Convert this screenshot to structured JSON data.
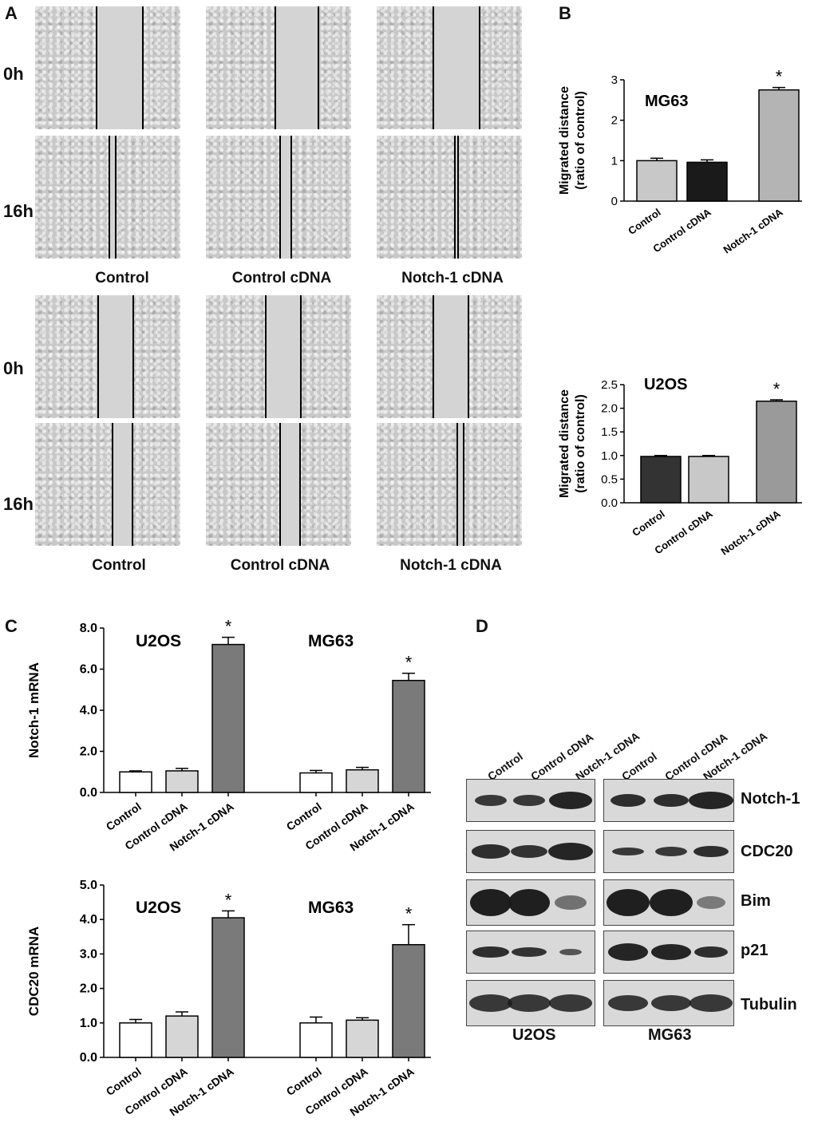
{
  "panel_letters": {
    "a": "A",
    "b": "B",
    "c": "C",
    "d": "D"
  },
  "panel_a": {
    "row_labels": [
      "0h",
      "16h",
      "0h",
      "16h"
    ],
    "top_conditions": [
      "Control",
      "Control cDNA",
      "Notch-1 cDNA"
    ],
    "bottom_conditions": [
      "Control",
      "Control cDNA",
      "Notch-1 cDNA"
    ]
  },
  "chart_data": [
    {
      "id": "b_mg63",
      "type": "bar",
      "title": "MG63",
      "ylabel": "Migrated distance (ratio of control)",
      "ylabel_line1": "Migrated distance",
      "ylabel_line2": "(ratio of control)",
      "categories": [
        "Control",
        "Control cDNA",
        "Notch-1 cDNA"
      ],
      "values": [
        1.0,
        0.96,
        2.75
      ],
      "errors": [
        0.06,
        0.06,
        0.06
      ],
      "colors": [
        "#c8c8c8",
        "#1a1a1a",
        "#b4b4b4"
      ],
      "significance": [
        "",
        "",
        "*"
      ],
      "ylim": [
        0,
        3
      ],
      "yticks": [
        "0",
        "1",
        "2",
        "3"
      ],
      "ytick_values": [
        0,
        1,
        2,
        3
      ]
    },
    {
      "id": "b_u2os",
      "type": "bar",
      "title": "U2OS",
      "ylabel": "Migrated distance (ratio of control)",
      "ylabel_line1": "Migrated distance",
      "ylabel_line2": "(ratio of control)",
      "categories": [
        "Control",
        "Control cDNA",
        "Notch-1 cDNA"
      ],
      "values": [
        0.98,
        0.98,
        2.15
      ],
      "errors": [
        0.02,
        0.02,
        0.03
      ],
      "colors": [
        "#333333",
        "#c8c8c8",
        "#9a9a9a"
      ],
      "significance": [
        "",
        "",
        "*"
      ],
      "ylim": [
        0,
        2.5
      ],
      "yticks": [
        "0.0",
        "0.5",
        "1.0",
        "1.5",
        "2.0",
        "2.5"
      ],
      "ytick_values": [
        0,
        0.5,
        1.0,
        1.5,
        2.0,
        2.5
      ]
    },
    {
      "id": "c_notch",
      "type": "bar",
      "ylabel": "Notch-1 mRNA",
      "groups": [
        {
          "title": "U2OS",
          "categories": [
            "Control",
            "Control cDNA",
            "Notch-1 cDNA"
          ],
          "values": [
            1.0,
            1.05,
            7.2
          ],
          "errors": [
            0.05,
            0.12,
            0.35
          ],
          "significance": [
            "",
            "",
            "*"
          ]
        },
        {
          "title": "MG63",
          "categories": [
            "Control",
            "Control cDNA",
            "Notch-1 cDNA"
          ],
          "values": [
            0.95,
            1.1,
            5.45
          ],
          "errors": [
            0.12,
            0.12,
            0.35
          ],
          "significance": [
            "",
            "",
            "*"
          ]
        }
      ],
      "colors": [
        "#ffffff",
        "#d6d6d6",
        "#7a7a7a"
      ],
      "ylim": [
        0,
        8
      ],
      "yticks": [
        "0.0",
        "2.0",
        "4.0",
        "6.0",
        "8.0"
      ],
      "ytick_values": [
        0,
        2,
        4,
        6,
        8
      ]
    },
    {
      "id": "c_cdc20",
      "type": "bar",
      "ylabel": "CDC20 mRNA",
      "groups": [
        {
          "title": "U2OS",
          "categories": [
            "Control",
            "Control cDNA",
            "Notch-1 cDNA"
          ],
          "values": [
            1.0,
            1.2,
            4.05
          ],
          "errors": [
            0.1,
            0.12,
            0.2
          ],
          "significance": [
            "",
            "",
            "*"
          ]
        },
        {
          "title": "MG63",
          "categories": [
            "Control",
            "Control cDNA",
            "Notch-1 cDNA"
          ],
          "values": [
            1.0,
            1.08,
            3.27
          ],
          "errors": [
            0.17,
            0.07,
            0.58
          ],
          "significance": [
            "",
            "",
            "*"
          ]
        }
      ],
      "colors": [
        "#ffffff",
        "#d6d6d6",
        "#7a7a7a"
      ],
      "ylim": [
        0,
        5
      ],
      "yticks": [
        "0.0",
        "1.0",
        "2.0",
        "3.0",
        "4.0",
        "5.0"
      ],
      "ytick_values": [
        0,
        1,
        2,
        3,
        4,
        5
      ]
    }
  ],
  "panel_d": {
    "lane_labels": [
      "Control",
      "Control cDNA",
      "Notch-1 cDNA",
      "Control",
      "Control cDNA",
      "Notch-1 cDNA"
    ],
    "proteins": [
      "Notch-1",
      "CDC20",
      "Bim",
      "p21",
      "Tubulin"
    ],
    "cell_lines": [
      "U2OS",
      "MG63"
    ]
  }
}
